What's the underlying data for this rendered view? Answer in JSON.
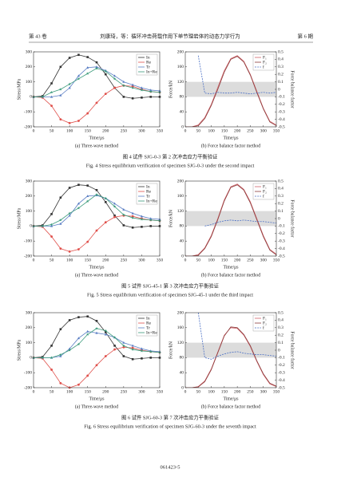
{
  "header": {
    "volume": "第 43 卷",
    "running_title": "刘康琦，等：循环冲击荷载作用下单节理岩体的动态力学行为",
    "issue": "第 6 期"
  },
  "chart_data": [
    {
      "type": "line",
      "subtitle": "(a) Three-wave method",
      "xlabel": "Time/μs",
      "ylabel": "Stress/MPa",
      "x": [
        0,
        25,
        50,
        75,
        100,
        125,
        150,
        175,
        200,
        225,
        250,
        275,
        300,
        325,
        350
      ],
      "xlim": [
        0,
        350
      ],
      "xticks": [
        0,
        50,
        100,
        150,
        200,
        250,
        300,
        350
      ],
      "ylim": [
        -200,
        300
      ],
      "yticks": [
        -200,
        -100,
        0,
        100,
        200,
        300
      ],
      "legend": "upper right",
      "series": [
        {
          "name": "In",
          "color": "#333333",
          "marker": "square",
          "values": [
            0,
            5,
            90,
            200,
            260,
            280,
            265,
            230,
            150,
            60,
            0,
            -10,
            -5,
            0,
            0
          ]
        },
        {
          "name": "Re",
          "color": "#e0504b",
          "marker": "circle",
          "values": [
            0,
            -5,
            -60,
            -150,
            -175,
            -160,
            -110,
            -40,
            20,
            60,
            75,
            70,
            50,
            35,
            30
          ]
        },
        {
          "name": "Tr",
          "color": "#5b7fc4",
          "marker": "triangle",
          "values": [
            0,
            0,
            0,
            10,
            60,
            140,
            195,
            200,
            175,
            140,
            100,
            80,
            60,
            45,
            40
          ]
        },
        {
          "name": "In+Re",
          "color": "#3a9a7a",
          "marker": "star",
          "values": [
            0,
            0,
            30,
            50,
            85,
            120,
            155,
            190,
            170,
            120,
            75,
            60,
            45,
            35,
            30
          ]
        }
      ]
    },
    {
      "type": "line",
      "subtitle": "(b) Force balance factor method",
      "xlabel": "Time/μs",
      "ylabel": "Force/kN",
      "y2label": "Force balance factor",
      "x": [
        0,
        25,
        50,
        75,
        100,
        125,
        150,
        175,
        200,
        225,
        250,
        275,
        300,
        325,
        350
      ],
      "xlim": [
        0,
        350
      ],
      "xticks": [
        0,
        50,
        100,
        150,
        200,
        250,
        300,
        350
      ],
      "ylim": [
        0,
        200
      ],
      "yticks": [
        0,
        40,
        80,
        120,
        160,
        200
      ],
      "y2lim": [
        -0.5,
        0.5
      ],
      "y2ticks": [
        -0.5,
        -0.4,
        -0.3,
        -0.2,
        -0.1,
        0,
        0.1,
        0.2,
        0.3,
        0.4,
        0.5
      ],
      "legend": "upper right",
      "band": {
        "axis": "y2",
        "range": [
          -0.1,
          0.1
        ],
        "color": "#dcdcdc"
      },
      "series": [
        {
          "name": "F₁",
          "color": "#d0636a",
          "values": [
            0,
            0,
            5,
            25,
            60,
            105,
            150,
            182,
            190,
            175,
            140,
            95,
            50,
            15,
            5
          ]
        },
        {
          "name": "F₂",
          "color": "#8b3a3a",
          "values": [
            0,
            0,
            3,
            22,
            57,
            100,
            146,
            180,
            188,
            173,
            138,
            92,
            48,
            13,
            3
          ]
        },
        {
          "name": "f",
          "color": "#4a6fc4",
          "dash": true,
          "axis": "y2",
          "values": [
            null,
            null,
            0.45,
            -0.05,
            -0.06,
            -0.04,
            -0.05,
            -0.05,
            -0.04,
            -0.05,
            -0.06,
            -0.05,
            -0.04,
            -0.05,
            -0.04
          ]
        }
      ]
    },
    {
      "type": "line",
      "subtitle": "(a) Three-wave method",
      "xlabel": "Time/μs",
      "ylabel": "Stress/MPa",
      "x": [
        0,
        25,
        50,
        75,
        100,
        125,
        150,
        175,
        200,
        225,
        250,
        275,
        300,
        325,
        350
      ],
      "xlim": [
        0,
        350
      ],
      "xticks": [
        0,
        50,
        100,
        150,
        200,
        250,
        300,
        350
      ],
      "ylim": [
        -200,
        300
      ],
      "yticks": [
        -200,
        -100,
        0,
        100,
        200,
        300
      ],
      "legend": "upper right",
      "series": [
        {
          "name": "In",
          "color": "#333333",
          "marker": "square",
          "values": [
            0,
            5,
            80,
            190,
            255,
            275,
            270,
            240,
            160,
            70,
            5,
            -10,
            -5,
            0,
            0
          ]
        },
        {
          "name": "Re",
          "color": "#e0504b",
          "marker": "circle",
          "values": [
            0,
            -5,
            -70,
            -150,
            -170,
            -155,
            -105,
            -30,
            25,
            60,
            70,
            65,
            50,
            40,
            35
          ]
        },
        {
          "name": "Tr",
          "color": "#5b7fc4",
          "marker": "triangle",
          "values": [
            0,
            0,
            0,
            15,
            70,
            150,
            200,
            205,
            185,
            150,
            110,
            85,
            65,
            50,
            45
          ]
        },
        {
          "name": "In+Re",
          "color": "#3a9a7a",
          "marker": "star",
          "values": [
            0,
            0,
            10,
            40,
            85,
            120,
            165,
            210,
            185,
            130,
            75,
            55,
            45,
            40,
            35
          ]
        }
      ]
    },
    {
      "type": "line",
      "subtitle": "(b) Force balance factor method",
      "xlabel": "Time/μs",
      "ylabel": "Force/kN",
      "y2label": "Force balance factor",
      "x": [
        0,
        25,
        50,
        75,
        100,
        125,
        150,
        175,
        200,
        225,
        250,
        275,
        300,
        325,
        350
      ],
      "xlim": [
        0,
        350
      ],
      "xticks": [
        0,
        50,
        100,
        150,
        200,
        250,
        300,
        350
      ],
      "ylim": [
        0,
        200
      ],
      "yticks": [
        0,
        40,
        80,
        120,
        160,
        200
      ],
      "y2lim": [
        -0.5,
        0.5
      ],
      "y2ticks": [
        -0.5,
        -0.4,
        -0.3,
        -0.2,
        -0.1,
        0,
        0.1,
        0.2,
        0.3,
        0.4,
        0.5
      ],
      "legend": "upper right",
      "band": {
        "axis": "y2",
        "range": [
          -0.1,
          0.1
        ],
        "color": "#dcdcdc"
      },
      "series": [
        {
          "name": "F₁",
          "color": "#d0636a",
          "values": [
            0,
            0,
            4,
            22,
            55,
            100,
            150,
            185,
            192,
            178,
            145,
            100,
            55,
            18,
            5
          ]
        },
        {
          "name": "F₂",
          "color": "#8b3a3a",
          "values": [
            0,
            0,
            2,
            20,
            52,
            97,
            147,
            183,
            190,
            176,
            142,
            97,
            52,
            16,
            3
          ]
        },
        {
          "name": "f",
          "color": "#4a6fc4",
          "dash": true,
          "axis": "y2",
          "values": [
            null,
            null,
            null,
            -0.1,
            -0.08,
            -0.05,
            -0.03,
            -0.02,
            -0.03,
            -0.02,
            -0.03,
            -0.04,
            -0.04,
            -0.05,
            -0.06
          ]
        }
      ]
    },
    {
      "type": "line",
      "subtitle": "(a) Three-wave method",
      "xlabel": "Time/μs",
      "ylabel": "Stress/MPa",
      "x": [
        0,
        25,
        50,
        75,
        100,
        125,
        150,
        175,
        200,
        225,
        250,
        275,
        300,
        325,
        350
      ],
      "xlim": [
        0,
        350
      ],
      "xticks": [
        0,
        50,
        100,
        150,
        200,
        250,
        300,
        350
      ],
      "ylim": [
        -200,
        300
      ],
      "yticks": [
        -200,
        -100,
        0,
        100,
        200,
        300
      ],
      "legend": "upper right",
      "series": [
        {
          "name": "In",
          "color": "#333333",
          "marker": "square",
          "values": [
            0,
            5,
            80,
            190,
            250,
            270,
            275,
            245,
            170,
            80,
            10,
            -10,
            -5,
            0,
            0
          ]
        },
        {
          "name": "Re",
          "color": "#e0504b",
          "marker": "circle",
          "values": [
            0,
            -5,
            -80,
            -170,
            -200,
            -180,
            -120,
            -50,
            10,
            55,
            70,
            65,
            50,
            40,
            35
          ]
        },
        {
          "name": "Tr",
          "color": "#5b7fc4",
          "marker": "triangle",
          "values": [
            0,
            0,
            0,
            10,
            60,
            130,
            175,
            165,
            155,
            135,
            100,
            80,
            60,
            45,
            40
          ]
        },
        {
          "name": "In+Re",
          "color": "#3a9a7a",
          "marker": "star",
          "values": [
            0,
            0,
            0,
            20,
            50,
            90,
            155,
            195,
            180,
            135,
            80,
            55,
            45,
            40,
            35
          ]
        }
      ]
    },
    {
      "type": "line",
      "subtitle": "(b) Force balance factor method",
      "xlabel": "Time/μs",
      "ylabel": "Force/kN",
      "y2label": "Force balance factor",
      "x": [
        0,
        25,
        50,
        75,
        100,
        125,
        150,
        175,
        200,
        225,
        250,
        275,
        300,
        325,
        350
      ],
      "xlim": [
        0,
        350
      ],
      "xticks": [
        0,
        50,
        100,
        150,
        200,
        250,
        300,
        350
      ],
      "ylim": [
        0,
        200
      ],
      "yticks": [
        0,
        40,
        80,
        120,
        160,
        200
      ],
      "y2lim": [
        -0.5,
        0.5
      ],
      "y2ticks": [
        -0.5,
        -0.4,
        -0.3,
        -0.2,
        -0.1,
        0,
        0.1,
        0.2,
        0.3,
        0.4,
        0.5
      ],
      "legend": "upper right",
      "band": {
        "axis": "y2",
        "range": [
          -0.1,
          0.1
        ],
        "color": "#dcdcdc"
      },
      "series": [
        {
          "name": "F₁",
          "color": "#d0636a",
          "values": [
            0,
            0,
            3,
            18,
            50,
            95,
            140,
            160,
            158,
            140,
            110,
            70,
            35,
            10,
            3
          ]
        },
        {
          "name": "F₂",
          "color": "#8b3a3a",
          "values": [
            0,
            0,
            2,
            16,
            48,
            93,
            138,
            162,
            160,
            142,
            112,
            72,
            37,
            12,
            4
          ]
        },
        {
          "name": "f",
          "color": "#4a6fc4",
          "dash": true,
          "axis": "y2",
          "values": [
            null,
            null,
            0.5,
            -0.1,
            -0.12,
            -0.08,
            -0.05,
            -0.03,
            -0.02,
            -0.04,
            -0.05,
            -0.06,
            -0.06,
            -0.07,
            -0.08
          ]
        }
      ]
    }
  ],
  "figures": [
    {
      "caption_cn": "图 4  试件 SJG-0-3 第 2 次冲击应力平衡验证",
      "caption_en": "Fig. 4   Stress equilibrium verification of specimen SJG-0-3 under the second impact"
    },
    {
      "caption_cn": "图 5  试件 SJG-45-1 第 3 次冲击应力平衡验证",
      "caption_en": "Fig. 5   Stress equilibrium verification of specimen SJG-45-1 under the third impact"
    },
    {
      "caption_cn": "图 6  试件 SJG-60-3 第 7 次冲击应力平衡验证",
      "caption_en": "Fig. 6   Stress equilibrium verification of specimen SJG-60-3 under the seventh impact"
    }
  ],
  "footer": {
    "page": "061423-5"
  }
}
